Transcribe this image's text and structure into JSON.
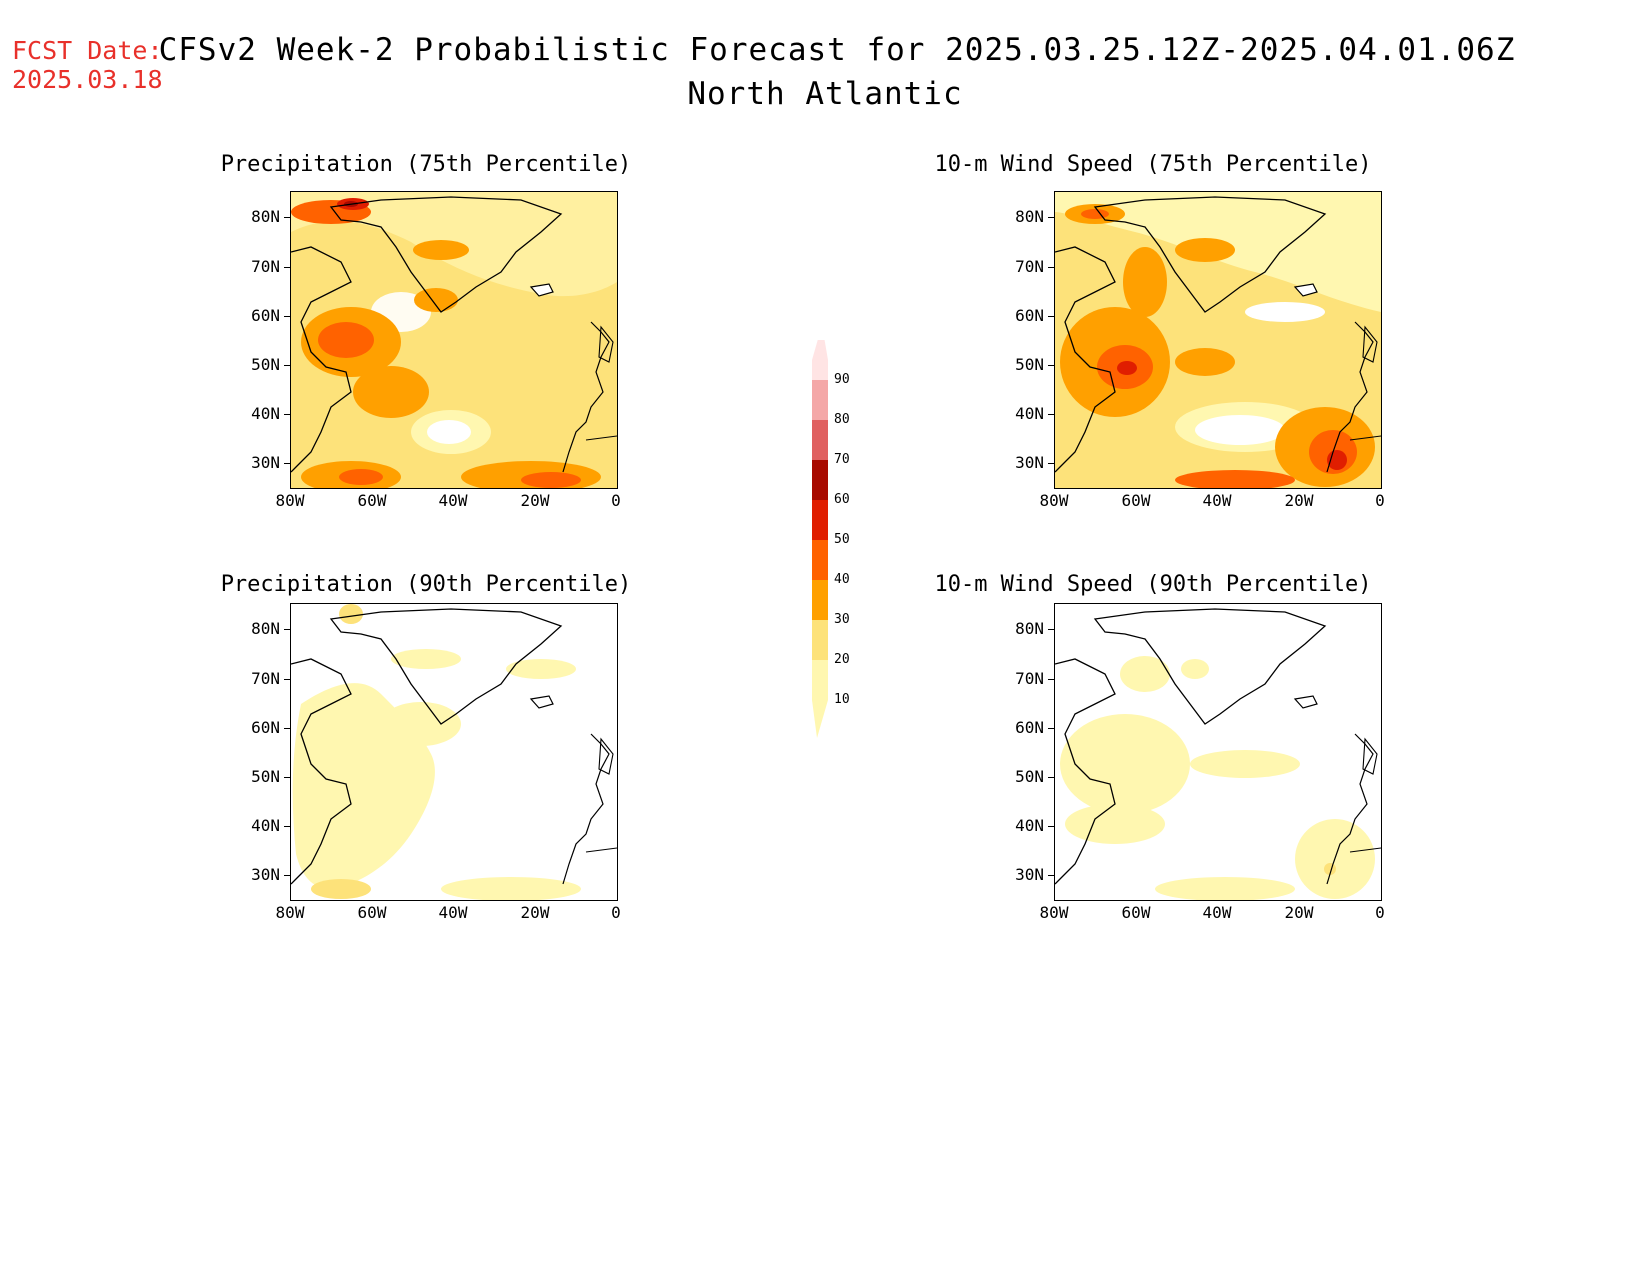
{
  "header": {
    "fcst_label": "FCST Date:",
    "fcst_date": "2025.03.18",
    "title": "CFSv2 Week-2 Probabilistic Forecast for 2025.03.25.12Z-2025.04.01.06Z",
    "subtitle": "North Atlantic"
  },
  "panels": [
    {
      "title": "Precipitation (75th Percentile)"
    },
    {
      "title": "10-m Wind Speed (75th Percentile)"
    },
    {
      "title": "Precipitation (90th Percentile)"
    },
    {
      "title": "10-m Wind Speed (90th Percentile)"
    }
  ],
  "axes": {
    "lat_labels": [
      "80N",
      "70N",
      "60N",
      "50N",
      "40N",
      "30N"
    ],
    "lon_labels": [
      "80W",
      "60W",
      "40W",
      "20W",
      "0"
    ]
  },
  "colorbar": {
    "levels": [
      "10",
      "20",
      "30",
      "40",
      "50",
      "60",
      "70",
      "80",
      "90"
    ],
    "colors": [
      "#fff7b0",
      "#fde27a",
      "#ffa000",
      "#ff6200",
      "#e01e00",
      "#a80a00",
      "#e06060",
      "#f4a7a7",
      "#ffe4e4"
    ]
  }
}
